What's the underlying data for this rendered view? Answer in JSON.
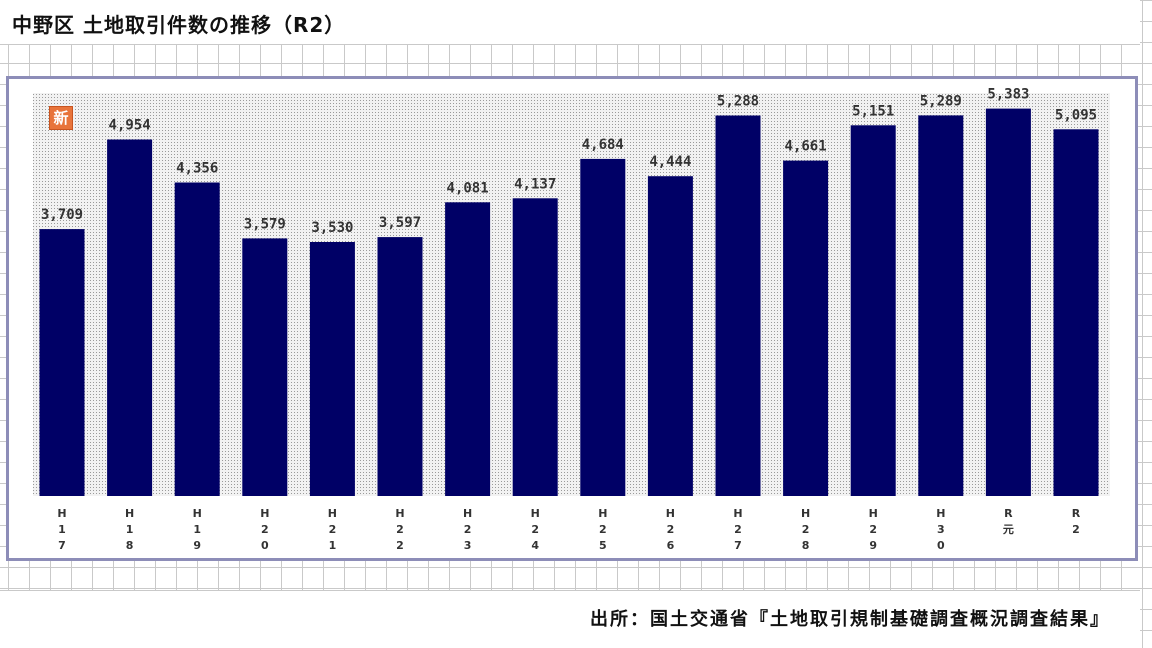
{
  "title": "中野区 土地取引件数の推移（R2）",
  "badge": "新",
  "source": "出所：国土交通省『土地取引規制基礎調査概況調査結果』",
  "colors": {
    "bar": "#000066",
    "frame": "#8d8db8",
    "badge": "#e8743b"
  },
  "chart_data": {
    "type": "bar",
    "title": "中野区 土地取引件数の推移（R2）",
    "xlabel": "",
    "ylabel": "",
    "categories": [
      [
        "H",
        "1",
        "7"
      ],
      [
        "H",
        "1",
        "8"
      ],
      [
        "H",
        "1",
        "9"
      ],
      [
        "H",
        "2",
        "0"
      ],
      [
        "H",
        "2",
        "1"
      ],
      [
        "H",
        "2",
        "2"
      ],
      [
        "H",
        "2",
        "3"
      ],
      [
        "H",
        "2",
        "4"
      ],
      [
        "H",
        "2",
        "5"
      ],
      [
        "H",
        "2",
        "6"
      ],
      [
        "H",
        "2",
        "7"
      ],
      [
        "H",
        "2",
        "8"
      ],
      [
        "H",
        "2",
        "9"
      ],
      [
        "H",
        "3",
        "0"
      ],
      [
        "R",
        "元"
      ],
      [
        "R",
        "2"
      ]
    ],
    "values": [
      3709,
      4954,
      4356,
      3579,
      3530,
      3597,
      4081,
      4137,
      4684,
      4444,
      5288,
      4661,
      5151,
      5289,
      5383,
      5095
    ],
    "labels": [
      "3,709",
      "4,954",
      "4,356",
      "3,579",
      "3,530",
      "3,597",
      "4,081",
      "4,137",
      "4,684",
      "4,444",
      "5,288",
      "4,661",
      "5,151",
      "5,289",
      "5,383",
      "5,095"
    ],
    "grid": false,
    "legend": "none"
  }
}
